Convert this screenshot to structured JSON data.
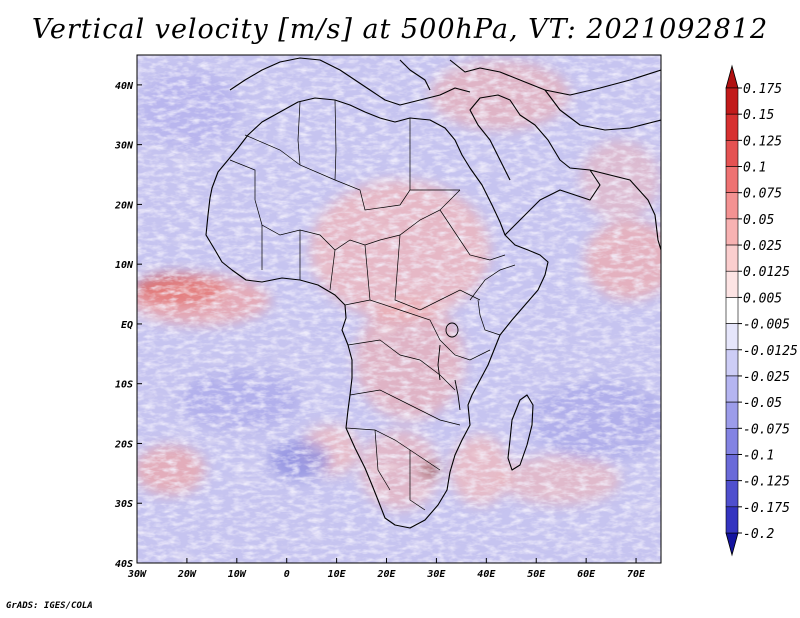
{
  "title": "Vertical velocity [m/s] at 500hPa, VT: 2021092812",
  "footer": "GrADS: IGES/COLA",
  "map": {
    "lon_range": [
      -30,
      75
    ],
    "lat_range": [
      -40,
      45
    ],
    "x_ticks": [
      {
        "lon": -30,
        "label": "30W"
      },
      {
        "lon": -20,
        "label": "20W"
      },
      {
        "lon": -10,
        "label": "10W"
      },
      {
        "lon": 0,
        "label": "0"
      },
      {
        "lon": 10,
        "label": "10E"
      },
      {
        "lon": 20,
        "label": "20E"
      },
      {
        "lon": 30,
        "label": "30E"
      },
      {
        "lon": 40,
        "label": "40E"
      },
      {
        "lon": 50,
        "label": "50E"
      },
      {
        "lon": 60,
        "label": "60E"
      },
      {
        "lon": 70,
        "label": "70E"
      }
    ],
    "y_ticks": [
      {
        "lat": 40,
        "label": "40N"
      },
      {
        "lat": 30,
        "label": "30N"
      },
      {
        "lat": 20,
        "label": "20N"
      },
      {
        "lat": 10,
        "label": "10N"
      },
      {
        "lat": 0,
        "label": "EQ"
      },
      {
        "lat": -10,
        "label": "10S"
      },
      {
        "lat": -20,
        "label": "20S"
      },
      {
        "lat": -30,
        "label": "30S"
      },
      {
        "lat": -40,
        "label": "40S"
      }
    ]
  },
  "colorbar": {
    "levels": [
      {
        "label": "0.175",
        "color": "#c21a1a"
      },
      {
        "label": "0.15",
        "color": "#d73030"
      },
      {
        "label": "0.125",
        "color": "#e55252"
      },
      {
        "label": "0.1",
        "color": "#ef7272"
      },
      {
        "label": "0.075",
        "color": "#f49292"
      },
      {
        "label": "0.05",
        "color": "#f8b2b2"
      },
      {
        "label": "0.025",
        "color": "#fbcece"
      },
      {
        "label": "0.0125",
        "color": "#fde4e4"
      },
      {
        "label": "0.005",
        "color": "#ffffff"
      },
      {
        "label": "-0.005",
        "color": "#e6e6fb"
      },
      {
        "label": "-0.0125",
        "color": "#cdcdf6"
      },
      {
        "label": "-0.025",
        "color": "#b5b5f1"
      },
      {
        "label": "-0.05",
        "color": "#9c9cea"
      },
      {
        "label": "-0.075",
        "color": "#8383e3"
      },
      {
        "label": "-0.1",
        "color": "#6a6ad9"
      },
      {
        "label": "-0.125",
        "color": "#4f4fce"
      },
      {
        "label": "-0.175",
        "color": "#3434c0"
      },
      {
        "label": "-0.2",
        "color": "#1c1ca8"
      }
    ],
    "top_color": "#b01010",
    "bottom_color": "#1414a0"
  }
}
